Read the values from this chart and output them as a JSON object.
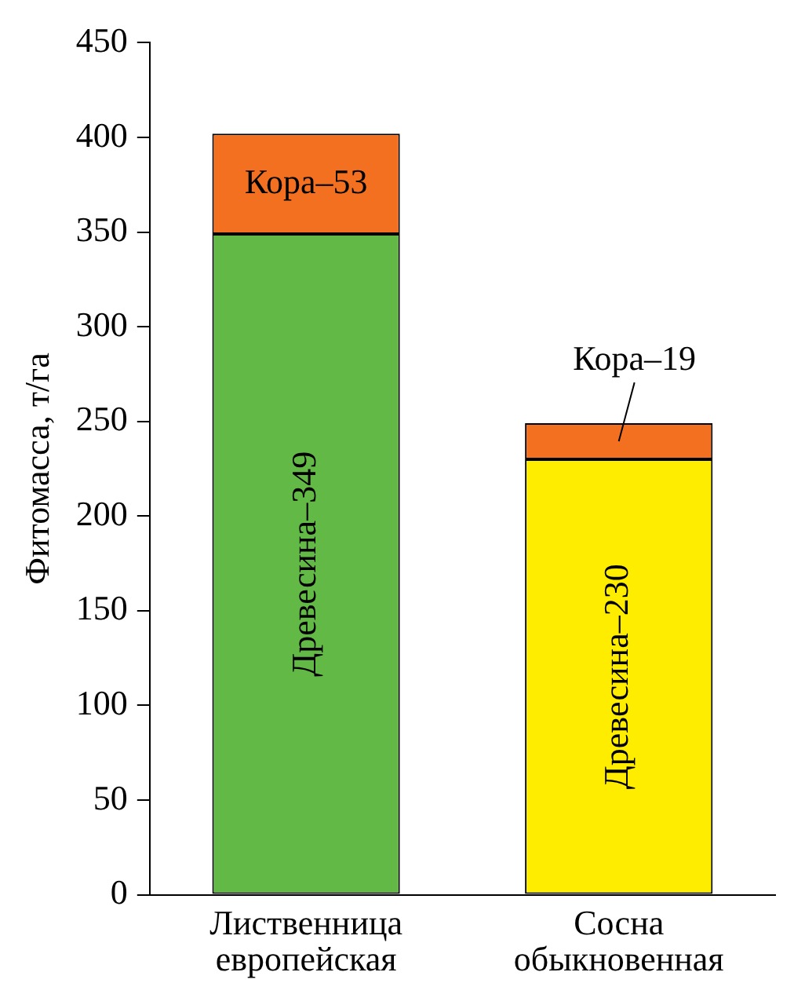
{
  "chart_data": {
    "type": "bar",
    "stacked": true,
    "categories": [
      "Лиственница европейская",
      "Сосна обыкновенная"
    ],
    "ylabel": "Фитомасса, т/га",
    "ylim": [
      0,
      450
    ],
    "yticks": [
      0,
      50,
      100,
      150,
      200,
      250,
      300,
      350,
      400,
      450
    ],
    "grid": false,
    "legend": false,
    "series": [
      {
        "colors": [
          "#62b946",
          "#ffed00"
        ],
        "values": [
          349,
          230
        ],
        "value_labels": [
          "Древесина–349",
          "Древесина–230"
        ]
      },
      {
        "colors": [
          "#f37021",
          "#f37021"
        ],
        "values": [
          53,
          19
        ],
        "value_labels": [
          "Кора–53",
          "Кора–19"
        ]
      }
    ]
  }
}
